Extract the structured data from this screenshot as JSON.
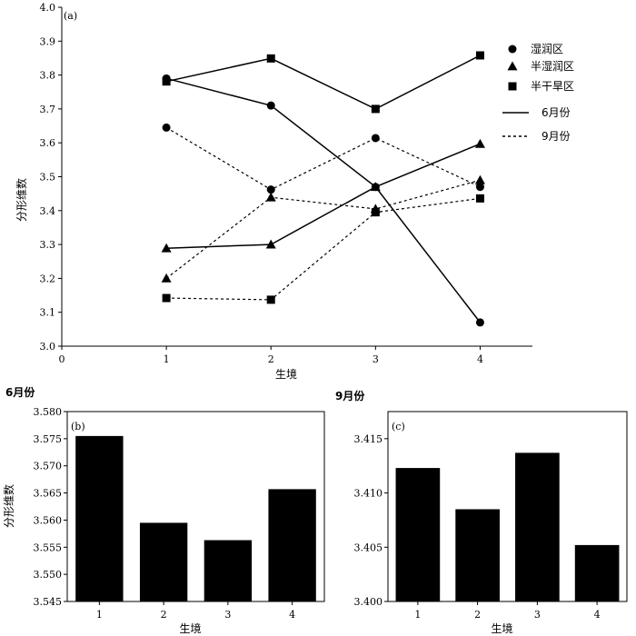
{
  "chart_data": [
    {
      "panel": "(a)",
      "type": "line",
      "xlabel": "生境",
      "ylabel": "分形维数",
      "xlim": [
        0,
        4.5
      ],
      "ylim": [
        3.0,
        4.0
      ],
      "xticks": [
        "0",
        "1",
        "2",
        "3",
        "4"
      ],
      "yticks": [
        "3.0",
        "3.1",
        "3.2",
        "3.3",
        "3.4",
        "3.5",
        "3.6",
        "3.7",
        "3.8",
        "3.9",
        "4.0"
      ],
      "x": [
        1,
        2,
        3,
        4
      ],
      "legend": {
        "markers": [
          {
            "name": "湿润区",
            "marker": "circle"
          },
          {
            "name": "半湿润区",
            "marker": "triangle"
          },
          {
            "name": "半干旱区",
            "marker": "square"
          }
        ],
        "lines": [
          {
            "name": "6月份",
            "style": "solid"
          },
          {
            "name": "9月份",
            "style": "dashed"
          }
        ]
      },
      "series": [
        {
          "name": "湿润区 6月份",
          "marker": "circle",
          "style": "solid",
          "values": [
            3.79,
            3.71,
            3.47,
            3.07
          ]
        },
        {
          "name": "湿润区 9月份",
          "marker": "circle",
          "style": "dashed",
          "values": [
            3.645,
            3.462,
            3.614,
            3.47
          ]
        },
        {
          "name": "半湿润区 6月份",
          "marker": "triangle",
          "style": "solid",
          "values": [
            3.289,
            3.3,
            3.47,
            3.597
          ]
        },
        {
          "name": "半湿润区 9月份",
          "marker": "triangle",
          "style": "dashed",
          "values": [
            3.2,
            3.439,
            3.405,
            3.49
          ]
        },
        {
          "name": "半干旱区 6月份",
          "marker": "square",
          "style": "solid",
          "values": [
            3.781,
            3.849,
            3.7,
            3.858
          ]
        },
        {
          "name": "半干旱区 9月份",
          "marker": "square",
          "style": "dashed",
          "values": [
            3.142,
            3.137,
            3.395,
            3.436
          ]
        }
      ]
    },
    {
      "panel": "(b)",
      "title": "6月份",
      "type": "bar",
      "xlabel": "生境",
      "ylabel": "分形维数",
      "categories": [
        "1",
        "2",
        "3",
        "4"
      ],
      "values": [
        3.5755,
        3.5595,
        3.5563,
        3.5657
      ],
      "ylim": [
        3.545,
        3.58
      ],
      "yticks": [
        "3.545",
        "3.550",
        "3.555",
        "3.560",
        "3.565",
        "3.570",
        "3.575",
        "3.580"
      ]
    },
    {
      "panel": "(c)",
      "title": "9月份",
      "type": "bar",
      "xlabel": "生境",
      "ylabel": "",
      "categories": [
        "1",
        "2",
        "3",
        "4"
      ],
      "values": [
        3.4123,
        3.4085,
        3.4137,
        3.4052
      ],
      "ylim": [
        3.4,
        3.4175
      ],
      "yticks": [
        "3.400",
        "3.405",
        "3.410",
        "3.415"
      ]
    }
  ]
}
